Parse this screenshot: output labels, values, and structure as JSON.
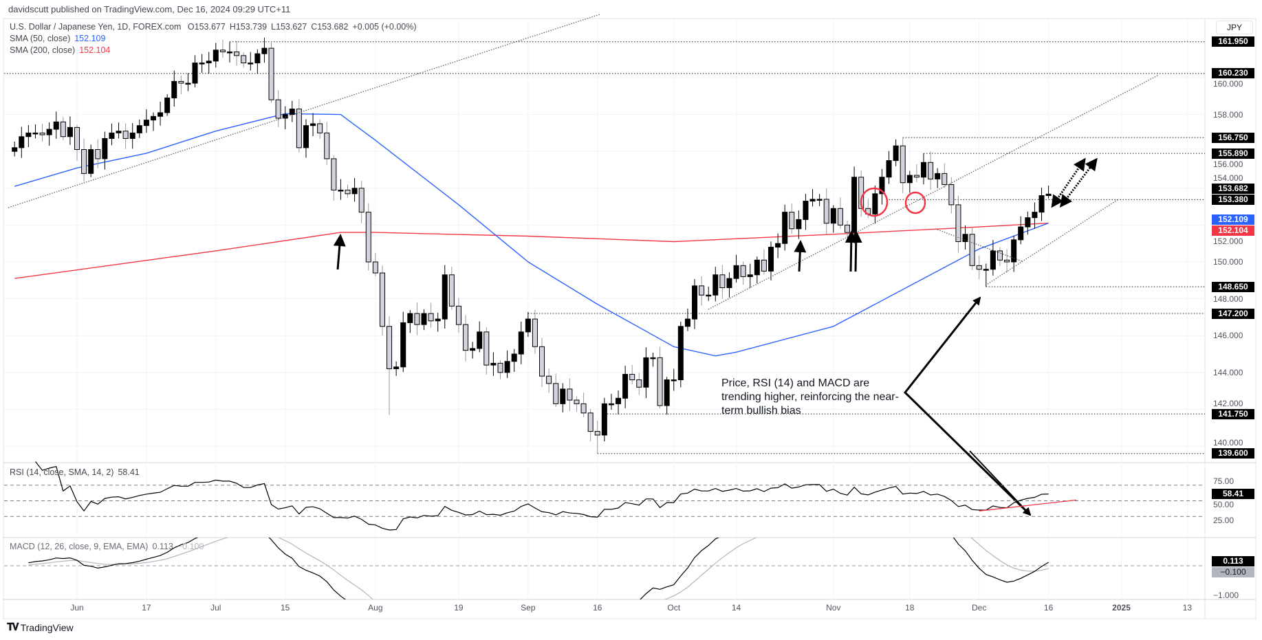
{
  "header": {
    "published": "davidscutt published on TradingView.com, Dec 16, 2024 09:29 UTC+11"
  },
  "legend": {
    "symbol": "U.S. Dollar / Japanese Yen, 1D, FOREX.com",
    "open": "O153.677",
    "high": "H153.739",
    "low": "L153.627",
    "close": "C153.682",
    "change": "+0.005 (+0.00%)",
    "sma50_label": "SMA (50, close)",
    "sma50_value": "152.109",
    "sma200_label": "SMA (200, close)",
    "sma200_value": "152.104",
    "rsi_label": "RSI (14, close, SMA, 14, 2)",
    "rsi_value": "58.41",
    "macd_label": "MACD (12, 26, close, 9, EMA, EMA)",
    "macd_value": "0.113",
    "macd_signal": "−0.100"
  },
  "currency_button": "JPY",
  "annotation_text": "Price, RSI (14) and MACD are trending higher, reinforcing the near-term bullish bias",
  "price_axis": {
    "ticks": [
      "160.000",
      "158.000",
      "156.000",
      "154.000",
      "152.000",
      "150.000",
      "148.000",
      "146.000",
      "144.000",
      "142.000",
      "140.000"
    ],
    "levels": [
      "161.950",
      "160.230",
      "156.750",
      "155.890",
      "153.380",
      "148.650",
      "147.200",
      "141.750",
      "139.600"
    ],
    "last_price": "153.682",
    "sma50_badge": "152.109",
    "sma200_badge": "152.104"
  },
  "rsi_axis": {
    "ticks": [
      "75.00",
      "50.00",
      "25.00"
    ],
    "badge": "58.41"
  },
  "macd_axis": {
    "ticks": [
      "−1.000"
    ],
    "macd_badge": "0.113",
    "signal_badge": "−0.100"
  },
  "time_axis": [
    "Jun",
    "17",
    "Jul",
    "15",
    "Aug",
    "19",
    "Sep",
    "16",
    "Oct",
    "14",
    "Nov",
    "18",
    "Dec",
    "16",
    "2025",
    "13"
  ],
  "footer": {
    "brand": "TradingView"
  },
  "colors": {
    "bull": "#000000",
    "bear": "#d1d4dc",
    "sma50": "#2962ff",
    "sma200": "#f23645",
    "circle": "#f23645",
    "signal": "#b2b5be"
  },
  "chart_data": {
    "type": "candlestick",
    "title": "U.S. Dollar / Japanese Yen, 1D, FOREX.com",
    "first_bar": "2024-05-21",
    "last_bar": "2024-12-16",
    "closes": [
      156.2,
      156.8,
      157.0,
      157.0,
      156.9,
      157.2,
      157.6,
      156.8,
      157.3,
      156.1,
      154.8,
      156.1,
      155.6,
      156.7,
      157.0,
      157.1,
      156.7,
      157.0,
      157.4,
      157.7,
      157.9,
      158.1,
      158.9,
      159.8,
      159.7,
      159.7,
      160.8,
      160.8,
      160.9,
      161.5,
      161.4,
      161.4,
      161.2,
      160.8,
      160.8,
      161.3,
      161.6,
      158.8,
      157.8,
      158.0,
      158.3,
      156.2,
      157.4,
      157.5,
      157.0,
      155.6,
      153.9,
      153.9,
      153.7,
      154.0,
      152.7,
      150.0,
      149.4,
      146.5,
      144.2,
      144.3,
      146.7,
      147.2,
      146.6,
      147.2,
      146.8,
      146.9,
      149.3,
      147.6,
      146.6,
      145.2,
      145.3,
      146.2,
      144.4,
      144.5,
      144.0,
      144.6,
      145.0,
      146.2,
      146.9,
      145.4,
      143.8,
      143.4,
      142.3,
      143.1,
      142.5,
      142.3,
      141.8,
      140.8,
      140.6,
      142.3,
      142.3,
      142.6,
      143.9,
      143.6,
      143.2,
      144.8,
      144.8,
      142.2,
      143.6,
      143.6,
      146.5,
      146.9,
      148.7,
      148.2,
      148.2,
      149.3,
      148.6,
      149.1,
      149.8,
      149.2,
      149.3,
      150.1,
      149.5,
      150.8,
      151.0,
      152.7,
      151.8,
      152.3,
      153.3,
      153.4,
      153.4,
      152.1,
      152.9,
      152.0,
      151.6,
      154.6,
      152.9,
      152.6,
      153.7,
      154.6,
      155.5,
      156.3,
      154.3,
      154.7,
      154.6,
      155.4,
      154.5,
      154.8,
      154.2,
      153.1,
      151.1,
      151.5,
      149.8,
      149.6,
      149.6,
      150.6,
      150.1,
      150.0,
      151.2,
      151.9,
      152.4,
      152.7,
      153.6,
      153.682
    ],
    "wick_extremes": [
      {
        "date": "2024-07-03",
        "high": 161.95
      },
      {
        "date": "2024-08-05",
        "low": 141.7
      },
      {
        "date": "2024-09-16",
        "low": 139.6
      },
      {
        "date": "2024-11-15",
        "high": 156.75
      },
      {
        "date": "2024-11-20",
        "high": 155.89
      },
      {
        "date": "2024-12-03",
        "low": 148.65
      }
    ],
    "sma50": [
      [
        "2024-05-21",
        154.1
      ],
      [
        "2024-06-03",
        155.1
      ],
      [
        "2024-06-17",
        155.9
      ],
      [
        "2024-07-01",
        157.1
      ],
      [
        "2024-07-15",
        158.05
      ],
      [
        "2024-07-25",
        158.0
      ],
      [
        "2024-08-01",
        156.6
      ],
      [
        "2024-08-19",
        153.1
      ],
      [
        "2024-09-02",
        150.0
      ],
      [
        "2024-09-16",
        147.7
      ],
      [
        "2024-10-01",
        145.4
      ],
      [
        "2024-10-09",
        144.9
      ],
      [
        "2024-10-14",
        145.1
      ],
      [
        "2024-11-01",
        146.5
      ],
      [
        "2024-11-18",
        148.7
      ],
      [
        "2024-12-02",
        150.7
      ],
      [
        "2024-12-16",
        152.109
      ]
    ],
    "sma200": [
      [
        "2024-05-21",
        149.1
      ],
      [
        "2024-07-01",
        150.6
      ],
      [
        "2024-07-25",
        151.6
      ],
      [
        "2024-08-01",
        151.6
      ],
      [
        "2024-09-02",
        151.4
      ],
      [
        "2024-10-01",
        151.1
      ],
      [
        "2024-11-01",
        151.5
      ],
      [
        "2024-12-02",
        151.9
      ],
      [
        "2024-12-16",
        152.104
      ]
    ],
    "rsi_levels": [
      70,
      50,
      30
    ],
    "rsi_last": 58.41,
    "macd_last": 0.113,
    "signal_last": -0.1,
    "ylim": [
      139.0,
      163.5
    ]
  }
}
